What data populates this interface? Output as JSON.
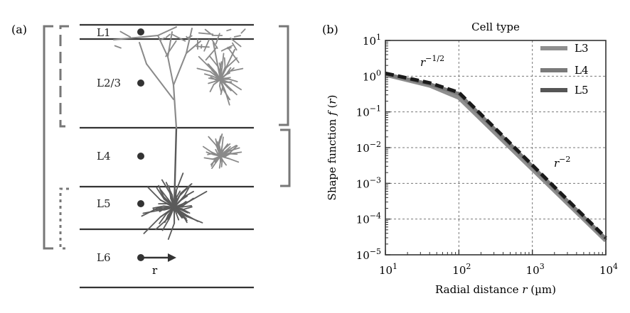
{
  "panel_a": {
    "label": "(a)",
    "layers": [
      "L1",
      "L2/3",
      "L4",
      "L5",
      "L6"
    ],
    "arrow_label": "r"
  },
  "panel_b": {
    "label": "(b)"
  },
  "colors": {
    "L3": "#8f8f8f",
    "L4": "#7a7a7a",
    "L5": "#555555",
    "neuron_upper": "#8a8a8a",
    "neuron_lower": "#5a5a5a",
    "bracket": "#777777"
  },
  "chart_data": {
    "type": "line",
    "title": "Cell type",
    "xlabel": "Radial distance r (µm)",
    "ylabel": "Shape function f (r)",
    "xscale": "log",
    "yscale": "log",
    "xlim": [
      10,
      10000
    ],
    "ylim": [
      1e-05,
      10
    ],
    "x_ticks": [
      "10^1",
      "10^2",
      "10^3",
      "10^4"
    ],
    "y_ticks": [
      "10^-5",
      "10^-4",
      "10^-3",
      "10^-2",
      "10^-1",
      "10^0",
      "10^1"
    ],
    "grid": true,
    "legend_position": "top-right",
    "annotations": [
      {
        "text": "r^-1/2",
        "x": 25,
        "y": 3.0
      },
      {
        "text": "r^-2",
        "x": 3000,
        "y": 0.008
      }
    ],
    "series": [
      {
        "name": "L3",
        "x": [
          10,
          40,
          100,
          10000
        ],
        "y": [
          1.1,
          0.55,
          0.25,
          2.5e-05
        ]
      },
      {
        "name": "L4",
        "x": [
          10,
          40,
          100,
          10000
        ],
        "y": [
          1.15,
          0.6,
          0.32,
          2.8e-05
        ]
      },
      {
        "name": "L5",
        "x": [
          10,
          40,
          100,
          10000
        ],
        "y": [
          1.2,
          0.65,
          0.35,
          3e-05
        ]
      }
    ]
  }
}
